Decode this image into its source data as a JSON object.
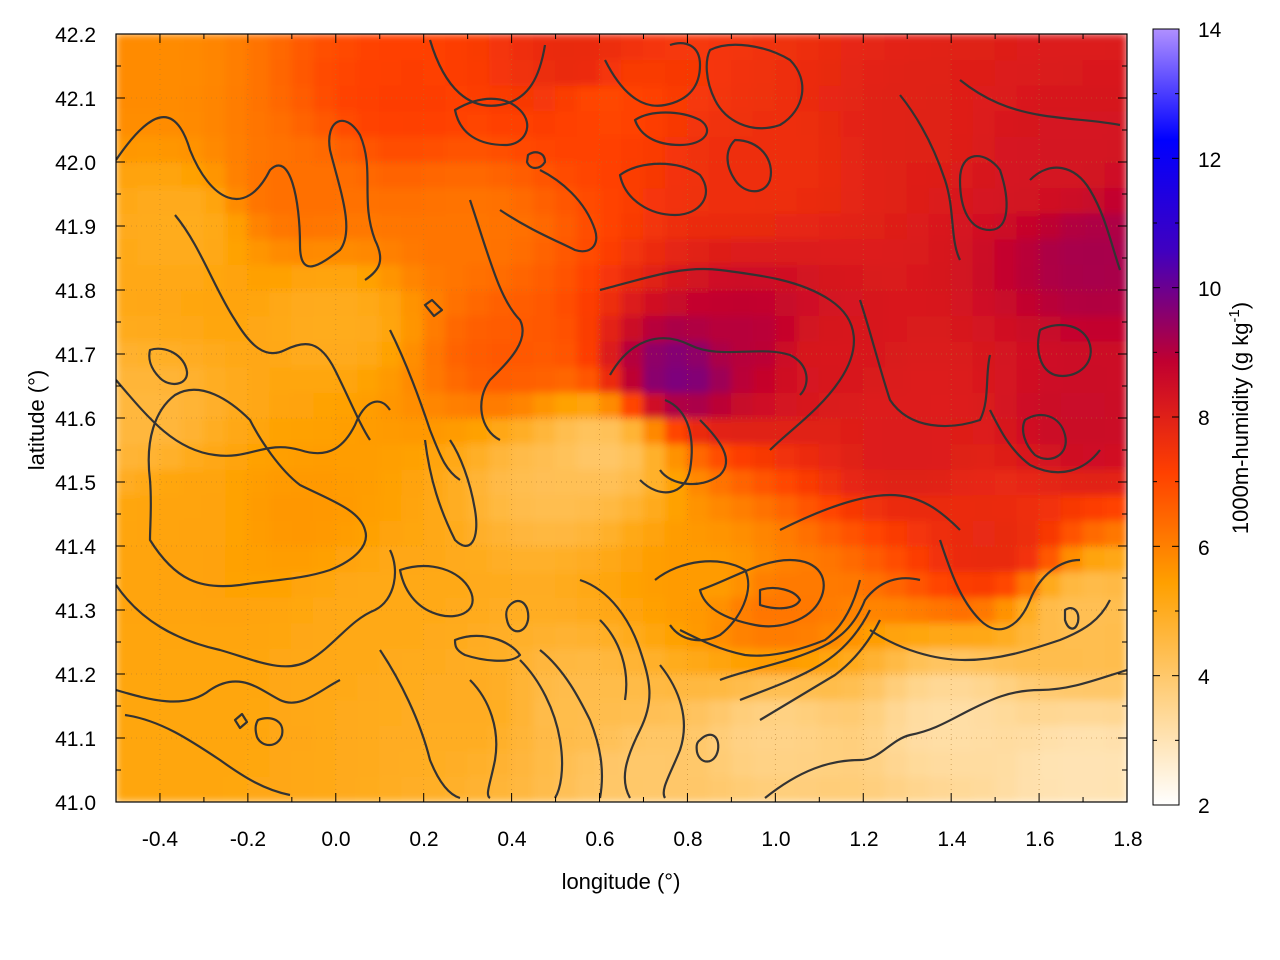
{
  "chart_data": {
    "type": "heatmap",
    "title": "",
    "xlabel": "longitude (°)",
    "ylabel": "latitude (°)",
    "xlim": [
      -0.5,
      1.8
    ],
    "ylim": [
      41.0,
      42.2
    ],
    "x_ticks": [
      "-0.4",
      "-0.2",
      "0.0",
      "0.2",
      "0.4",
      "0.6",
      "0.8",
      "1.0",
      "1.2",
      "1.4",
      "1.6",
      "1.8"
    ],
    "y_ticks": [
      "41.0",
      "41.1",
      "41.2",
      "41.3",
      "41.4",
      "41.5",
      "41.6",
      "41.7",
      "41.8",
      "41.9",
      "42.0",
      "42.1",
      "42.2"
    ],
    "grid": true,
    "colorbar": {
      "label_main": "1000m-humidity (g kg",
      "label_sup": "-1",
      "label_end": ")",
      "range": [
        2,
        14
      ],
      "ticks": [
        "2",
        "4",
        "6",
        "8",
        "10",
        "12",
        "14"
      ],
      "colors": [
        "#ffffff",
        "#ffd080",
        "#ffa000",
        "#ff4000",
        "#c00030",
        "#4000c0",
        "#0000ff",
        "#b090ff"
      ]
    },
    "field_points": [
      {
        "lon": -0.35,
        "lat": 41.9,
        "value": 5.0
      },
      {
        "lon": -0.1,
        "lat": 41.95,
        "value": 6.3
      },
      {
        "lon": 0.15,
        "lat": 42.1,
        "value": 7.2
      },
      {
        "lon": 0.6,
        "lat": 42.1,
        "value": 7.0
      },
      {
        "lon": 0.95,
        "lat": 42.0,
        "value": 7.6
      },
      {
        "lon": 1.35,
        "lat": 42.05,
        "value": 8.0
      },
      {
        "lon": 1.72,
        "lat": 41.85,
        "value": 9.2
      },
      {
        "lon": 1.6,
        "lat": 42.0,
        "value": 8.3
      },
      {
        "lon": 0.78,
        "lat": 41.67,
        "value": 9.8
      },
      {
        "lon": 0.95,
        "lat": 41.72,
        "value": 9.0
      },
      {
        "lon": 1.1,
        "lat": 41.7,
        "value": 8.2
      },
      {
        "lon": 1.3,
        "lat": 41.55,
        "value": 8.1
      },
      {
        "lon": 1.5,
        "lat": 41.4,
        "value": 7.8
      },
      {
        "lon": 1.7,
        "lat": 41.6,
        "value": 8.6
      },
      {
        "lon": 0.0,
        "lat": 41.75,
        "value": 5.0
      },
      {
        "lon": -0.3,
        "lat": 41.45,
        "value": 5.3
      },
      {
        "lon": -0.1,
        "lat": 41.45,
        "value": 5.6
      },
      {
        "lon": 0.4,
        "lat": 41.7,
        "value": 6.7
      },
      {
        "lon": 0.3,
        "lat": 41.9,
        "value": 6.2
      },
      {
        "lon": 0.5,
        "lat": 41.5,
        "value": 4.3
      },
      {
        "lon": 0.6,
        "lat": 41.55,
        "value": 4.0
      },
      {
        "lon": 0.85,
        "lat": 41.35,
        "value": 5.5
      },
      {
        "lon": 1.0,
        "lat": 41.3,
        "value": 6.2
      },
      {
        "lon": 1.0,
        "lat": 41.1,
        "value": 3.6
      },
      {
        "lon": 1.4,
        "lat": 41.12,
        "value": 3.2
      },
      {
        "lon": 1.7,
        "lat": 41.05,
        "value": 3.0
      },
      {
        "lon": 1.7,
        "lat": 41.3,
        "value": 4.3
      },
      {
        "lon": 0.55,
        "lat": 41.15,
        "value": 4.4
      },
      {
        "lon": 0.3,
        "lat": 41.15,
        "value": 5.0
      },
      {
        "lon": -0.3,
        "lat": 41.1,
        "value": 5.2
      },
      {
        "lon": 0.1,
        "lat": 41.3,
        "value": 5.1
      },
      {
        "lon": 0.7,
        "lat": 41.05,
        "value": 4.0
      },
      {
        "lon": 0.55,
        "lat": 42.15,
        "value": 7.8
      },
      {
        "lon": -0.45,
        "lat": 42.15,
        "value": 5.8
      },
      {
        "lon": -0.45,
        "lat": 41.6,
        "value": 4.6
      }
    ]
  }
}
